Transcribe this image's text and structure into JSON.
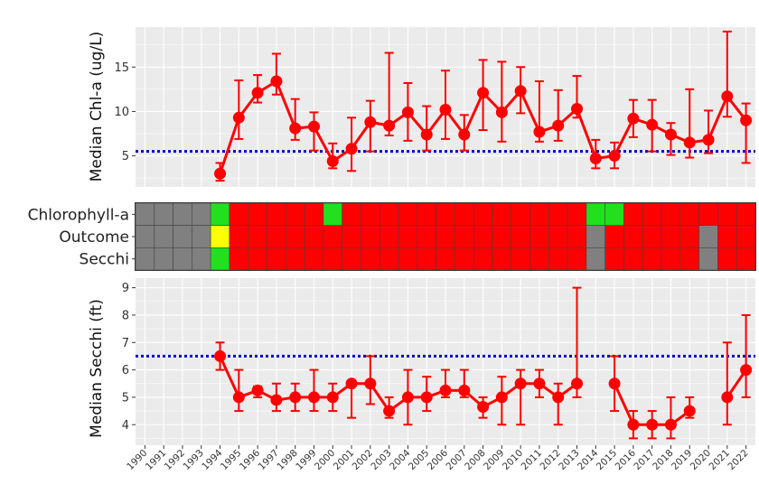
{
  "years": [
    1990,
    1991,
    1992,
    1993,
    1994,
    1995,
    1996,
    1997,
    1998,
    1999,
    2000,
    2001,
    2002,
    2003,
    2004,
    2005,
    2006,
    2007,
    2008,
    2009,
    2010,
    2011,
    2012,
    2013,
    2014,
    2015,
    2016,
    2017,
    2018,
    2019,
    2020,
    2021,
    2022
  ],
  "colors": {
    "panel_bg": "#EBEBEB",
    "grid": "#FFFFFF",
    "series": "#FF0000",
    "threshold": "#0000CD",
    "tile_red": "#FF0000",
    "tile_green": "#22E01E",
    "tile_yellow": "#FFFF00",
    "tile_gray": "#808080"
  },
  "chart_data": [
    {
      "type": "line",
      "ylabel": "Median Chl-a (ug/L)",
      "xlabel": "",
      "ylim": [
        1.5,
        19.5
      ],
      "yticks": [
        5,
        10,
        15
      ],
      "threshold": 5.5,
      "series": [
        {
          "x": [
            1994,
            1995,
            1996,
            1997,
            1998,
            1999,
            2000,
            2001,
            2002,
            2003,
            2004,
            2005,
            2006,
            2007,
            2008,
            2009,
            2010,
            2011,
            2012,
            2013,
            2014,
            2015,
            2016,
            2017,
            2018,
            2019,
            2020,
            2021,
            2022
          ],
          "y": [
            3.0,
            9.3,
            12.1,
            13.4,
            8.1,
            8.3,
            4.4,
            5.8,
            8.8,
            8.4,
            9.9,
            7.4,
            10.2,
            7.4,
            12.1,
            9.9,
            12.3,
            7.7,
            8.4,
            10.3,
            4.7,
            5.0,
            9.2,
            8.5,
            7.4,
            6.5,
            6.8,
            11.7,
            9.0
          ],
          "lo": [
            2.2,
            6.9,
            11.0,
            11.9,
            6.8,
            5.6,
            3.6,
            3.3,
            5.5,
            7.3,
            6.7,
            5.6,
            6.9,
            5.6,
            7.9,
            6.6,
            9.8,
            6.6,
            6.7,
            9.3,
            3.6,
            3.6,
            7.1,
            5.5,
            5.1,
            4.8,
            5.3,
            9.4,
            4.2
          ],
          "hi": [
            4.2,
            13.5,
            14.1,
            16.5,
            11.4,
            9.9,
            6.4,
            9.3,
            11.2,
            16.6,
            13.2,
            10.6,
            14.6,
            9.6,
            15.8,
            15.6,
            15.0,
            13.4,
            12.4,
            14.0,
            6.8,
            6.5,
            11.3,
            11.3,
            8.7,
            12.5,
            10.1,
            19.0,
            10.9
          ]
        }
      ]
    },
    {
      "type": "heatmap",
      "rows": [
        "Chlorophyll-a",
        "Outcome",
        "Secchi"
      ],
      "values": [
        [
          "gray",
          "gray",
          "gray",
          "gray",
          "green",
          "red",
          "red",
          "red",
          "red",
          "red",
          "green",
          "red",
          "red",
          "red",
          "red",
          "red",
          "red",
          "red",
          "red",
          "red",
          "red",
          "red",
          "red",
          "red",
          "green",
          "green",
          "red",
          "red",
          "red",
          "red",
          "red",
          "red",
          "red"
        ],
        [
          "gray",
          "gray",
          "gray",
          "gray",
          "yellow",
          "red",
          "red",
          "red",
          "red",
          "red",
          "red",
          "red",
          "red",
          "red",
          "red",
          "red",
          "red",
          "red",
          "red",
          "red",
          "red",
          "red",
          "red",
          "red",
          "gray",
          "red",
          "red",
          "red",
          "red",
          "red",
          "gray",
          "red",
          "red"
        ],
        [
          "gray",
          "gray",
          "gray",
          "gray",
          "green",
          "red",
          "red",
          "red",
          "red",
          "red",
          "red",
          "red",
          "red",
          "red",
          "red",
          "red",
          "red",
          "red",
          "red",
          "red",
          "red",
          "red",
          "red",
          "red",
          "gray",
          "red",
          "red",
          "red",
          "red",
          "red",
          "gray",
          "red",
          "red"
        ]
      ]
    },
    {
      "type": "line",
      "ylabel": "Median Secchi (ft)",
      "xlabel": "",
      "ylim": [
        3.25,
        9.35
      ],
      "yticks": [
        4,
        5,
        6,
        7,
        8,
        9
      ],
      "threshold": 6.5,
      "series": [
        {
          "x": [
            1994,
            1995,
            1996,
            1997,
            1998,
            1999,
            2000,
            2001,
            2002,
            2003,
            2004,
            2005,
            2006,
            2007,
            2008,
            2009,
            2010,
            2011,
            2012,
            2013,
            2015,
            2016,
            2017,
            2018,
            2019,
            2021,
            2022
          ],
          "y": [
            6.5,
            5.0,
            5.25,
            4.9,
            5.0,
            5.0,
            5.0,
            5.5,
            5.5,
            4.5,
            5.0,
            5.0,
            5.25,
            5.25,
            4.65,
            5.0,
            5.5,
            5.5,
            5.0,
            5.5,
            5.5,
            4.0,
            4.0,
            4.0,
            4.5,
            5.0,
            6.0
          ],
          "lo": [
            6.0,
            4.5,
            5.0,
            4.5,
            4.5,
            4.5,
            4.5,
            4.25,
            4.75,
            4.25,
            4.0,
            4.5,
            5.0,
            5.0,
            4.25,
            4.0,
            4.0,
            5.0,
            4.0,
            5.0,
            4.5,
            3.5,
            3.5,
            3.5,
            4.25,
            4.0,
            5.0
          ],
          "hi": [
            7.0,
            6.0,
            5.4,
            5.5,
            5.5,
            6.0,
            5.5,
            5.5,
            6.5,
            5.0,
            6.0,
            5.75,
            6.0,
            6.0,
            5.0,
            5.75,
            6.0,
            6.0,
            5.5,
            9.0,
            6.5,
            4.5,
            4.5,
            5.0,
            5.0,
            7.0,
            8.0
          ]
        }
      ]
    }
  ]
}
